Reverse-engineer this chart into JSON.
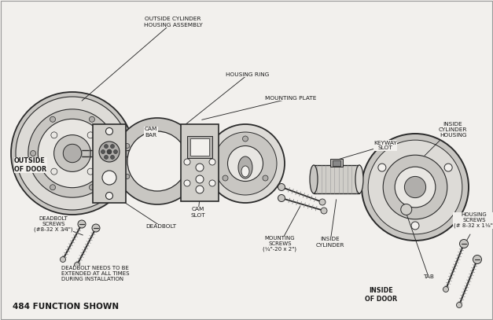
{
  "background_color": "#f2f0ed",
  "line_color": "#2a2a2a",
  "text_color": "#1a1a1a",
  "title": "484 FUNCTION SHOWN",
  "labels": {
    "outside_cylinder": "OUTSIDE CYLINDER\nHOUSING ASSEMBLY",
    "housing_ring": "HOUSING RING",
    "mounting_plate": "MOUNTING PLATE",
    "outside_door": "OUTSIDE\nOF DOOR",
    "cam_bar": "CAM\nBAR",
    "cam_slot": "CAM\nSLOT",
    "deadbolt": "DEADBOLT",
    "deadbolt_screws": "DEADBOLT\nSCREWS\n(#8-32 X 3⁄4\")",
    "deadbolt_note": "DEADBOLT NEEDS TO BE\nEXTENDED AT ALL TIMES\nDURING INSTALLATION",
    "mounting_screws": "MOUNTING\nSCREWS\n(¼\"-20 x 2\")",
    "inside_cylinder": "INSIDE\nCYLINDER",
    "keyway_slot": "KEYWAY\nSLOT",
    "inside_cylinder_housing": "INSIDE\nCYLINDER\nHOUSING",
    "inside_door": "INSIDE\nOF DOOR",
    "tab": "TAB",
    "housing_screws": "HOUSING\nSCREWS\n(# 8-32 x 1⅛\")"
  },
  "fig_width": 6.27,
  "fig_height": 4.07,
  "dpi": 100
}
